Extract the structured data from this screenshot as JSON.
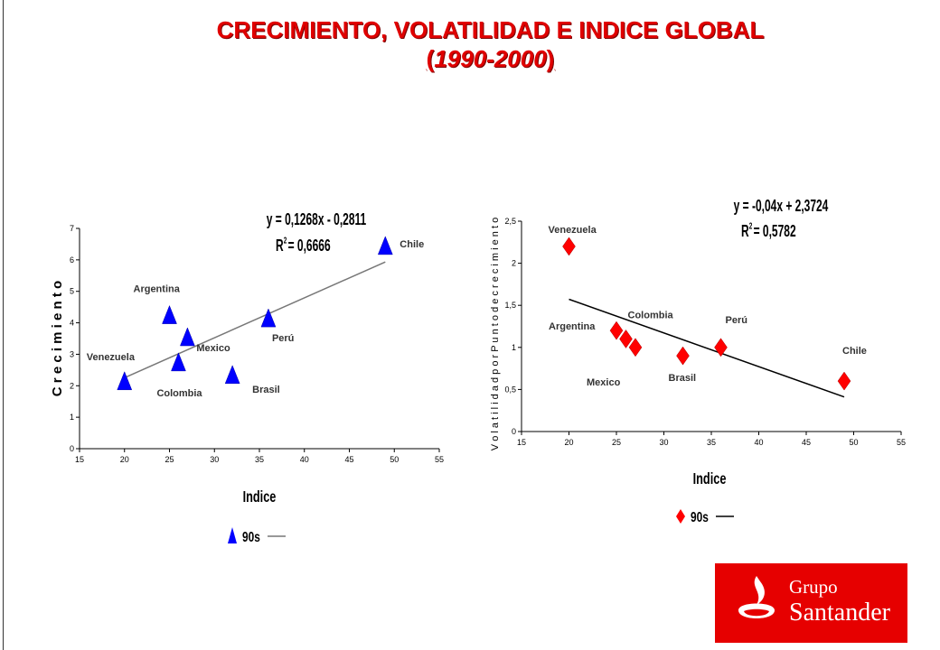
{
  "title": {
    "line1": "CRECIMIENTO, VOLATILIDAD E INDICE GLOBAL",
    "line2": "1990-2000",
    "open_paren": "(",
    "close_paren": ")"
  },
  "logo": {
    "line1": "Grupo",
    "line2": "Santander"
  },
  "colors": {
    "title": "#e00000",
    "left_marker": "#0000ff",
    "right_marker": "#ff0000",
    "logo_bg": "#e60000"
  },
  "chart_data": [
    {
      "type": "scatter",
      "xlabel": "Indice",
      "ylabel": "C r e c i m i e n t o",
      "xlim": [
        15,
        55
      ],
      "ylim": [
        0,
        7
      ],
      "xticks": [
        "15",
        "20",
        "25",
        "30",
        "35",
        "40",
        "45",
        "50",
        "55"
      ],
      "yticks": [
        "0",
        "1",
        "2",
        "3",
        "4",
        "5",
        "6",
        "7"
      ],
      "marker": "triangle",
      "series": [
        {
          "name": "90s",
          "points": [
            {
              "label": "Venezuela",
              "x": 20,
              "y": 2.1
            },
            {
              "label": "Argentina",
              "x": 25,
              "y": 4.2
            },
            {
              "label": "Colombia",
              "x": 26,
              "y": 2.7
            },
            {
              "label": "Mexico",
              "x": 27,
              "y": 3.5
            },
            {
              "label": "Brasil",
              "x": 32,
              "y": 2.3
            },
            {
              "label": "Perú",
              "x": 36,
              "y": 4.1
            },
            {
              "label": "Chile",
              "x": 49,
              "y": 6.4
            }
          ]
        }
      ],
      "trendline": {
        "x": [
          20,
          49
        ]
      },
      "equation": "y = 0,1268x - 0,2811",
      "r2_text": "R",
      "r2_sup": "2",
      "r2_value": " = 0,6666",
      "legend": "90s"
    },
    {
      "type": "scatter",
      "xlabel": "Indice",
      "ylabel": "V o l a t i l i d a d   p o r   P u n t o   d e   c r e c i m i e n t o",
      "xlim": [
        15,
        55
      ],
      "ylim": [
        0,
        2.5
      ],
      "xticks": [
        "15",
        "20",
        "25",
        "30",
        "35",
        "40",
        "45",
        "50",
        "55"
      ],
      "yticks": [
        "0",
        "0,5",
        "1",
        "1,5",
        "2",
        "2,5"
      ],
      "marker": "diamond",
      "series": [
        {
          "name": "90s",
          "points": [
            {
              "label": "Venezuela",
              "x": 20,
              "y": 2.2
            },
            {
              "label": "Argentina",
              "x": 25,
              "y": 1.2
            },
            {
              "label": "Colombia",
              "x": 26,
              "y": 1.1
            },
            {
              "label": "Mexico",
              "x": 27,
              "y": 1.0
            },
            {
              "label": "Brasil",
              "x": 32,
              "y": 0.9
            },
            {
              "label": "Perú",
              "x": 36,
              "y": 1.0
            },
            {
              "label": "Chile",
              "x": 49,
              "y": 0.6
            }
          ]
        }
      ],
      "trendline": {
        "x": [
          20,
          49
        ]
      },
      "equation": "y = -0,04x + 2,3724",
      "r2_text": "R",
      "r2_sup": "2",
      "r2_value": " = 0,5782",
      "legend": "90s"
    }
  ]
}
